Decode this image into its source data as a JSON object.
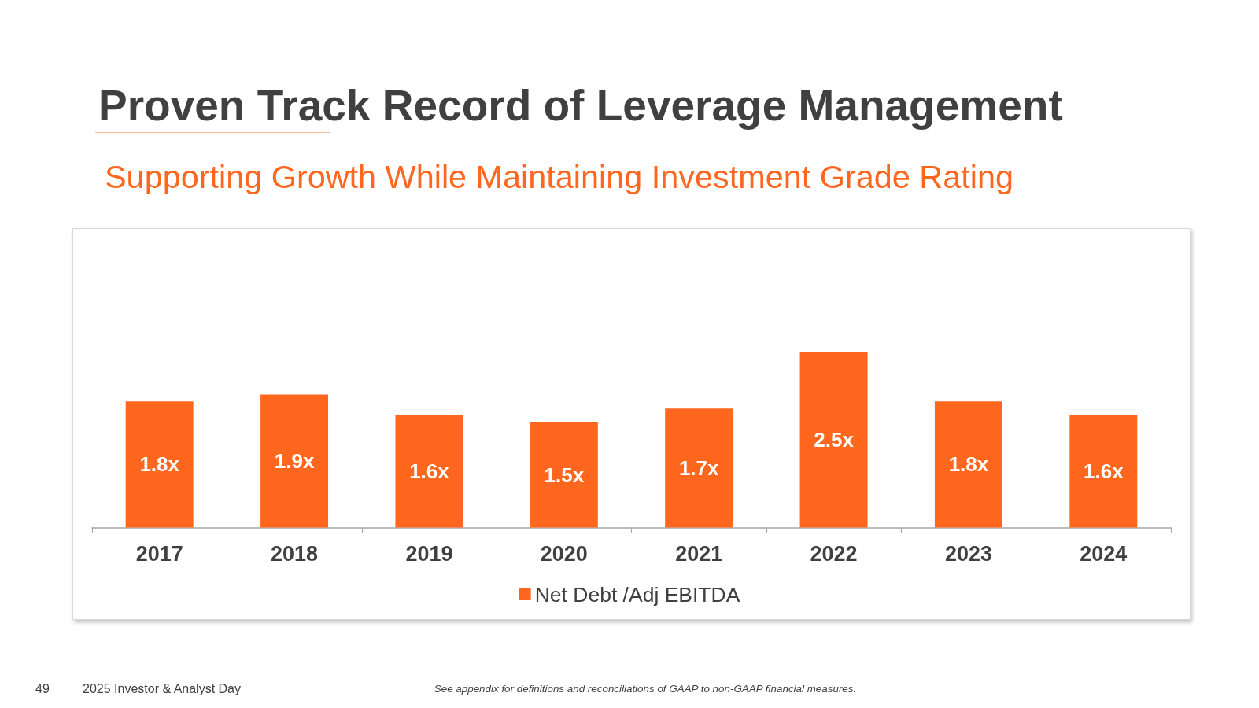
{
  "chart_data": {
    "type": "bar",
    "title": "Proven Track Record of Leverage Management",
    "subtitle": "Supporting Growth While Maintaining Investment Grade Rating",
    "categories": [
      "2017",
      "2018",
      "2019",
      "2020",
      "2021",
      "2022",
      "2023",
      "2024"
    ],
    "series": [
      {
        "name": "Net Debt /Adj EBITDA",
        "color": "#ff671f",
        "values": [
          1.8,
          1.9,
          1.6,
          1.5,
          1.7,
          2.5,
          1.8,
          1.6
        ],
        "value_labels": [
          "1.8x",
          "1.9x",
          "1.6x",
          "1.5x",
          "1.7x",
          "2.5x",
          "1.8x",
          "1.6x"
        ]
      }
    ],
    "legend": "bottom",
    "annotations": [
      "49",
      "2025 Investor & Analyst Day",
      "See appendix for definitions and reconciliations of GAAP to non-GAAP financial measures."
    ]
  }
}
